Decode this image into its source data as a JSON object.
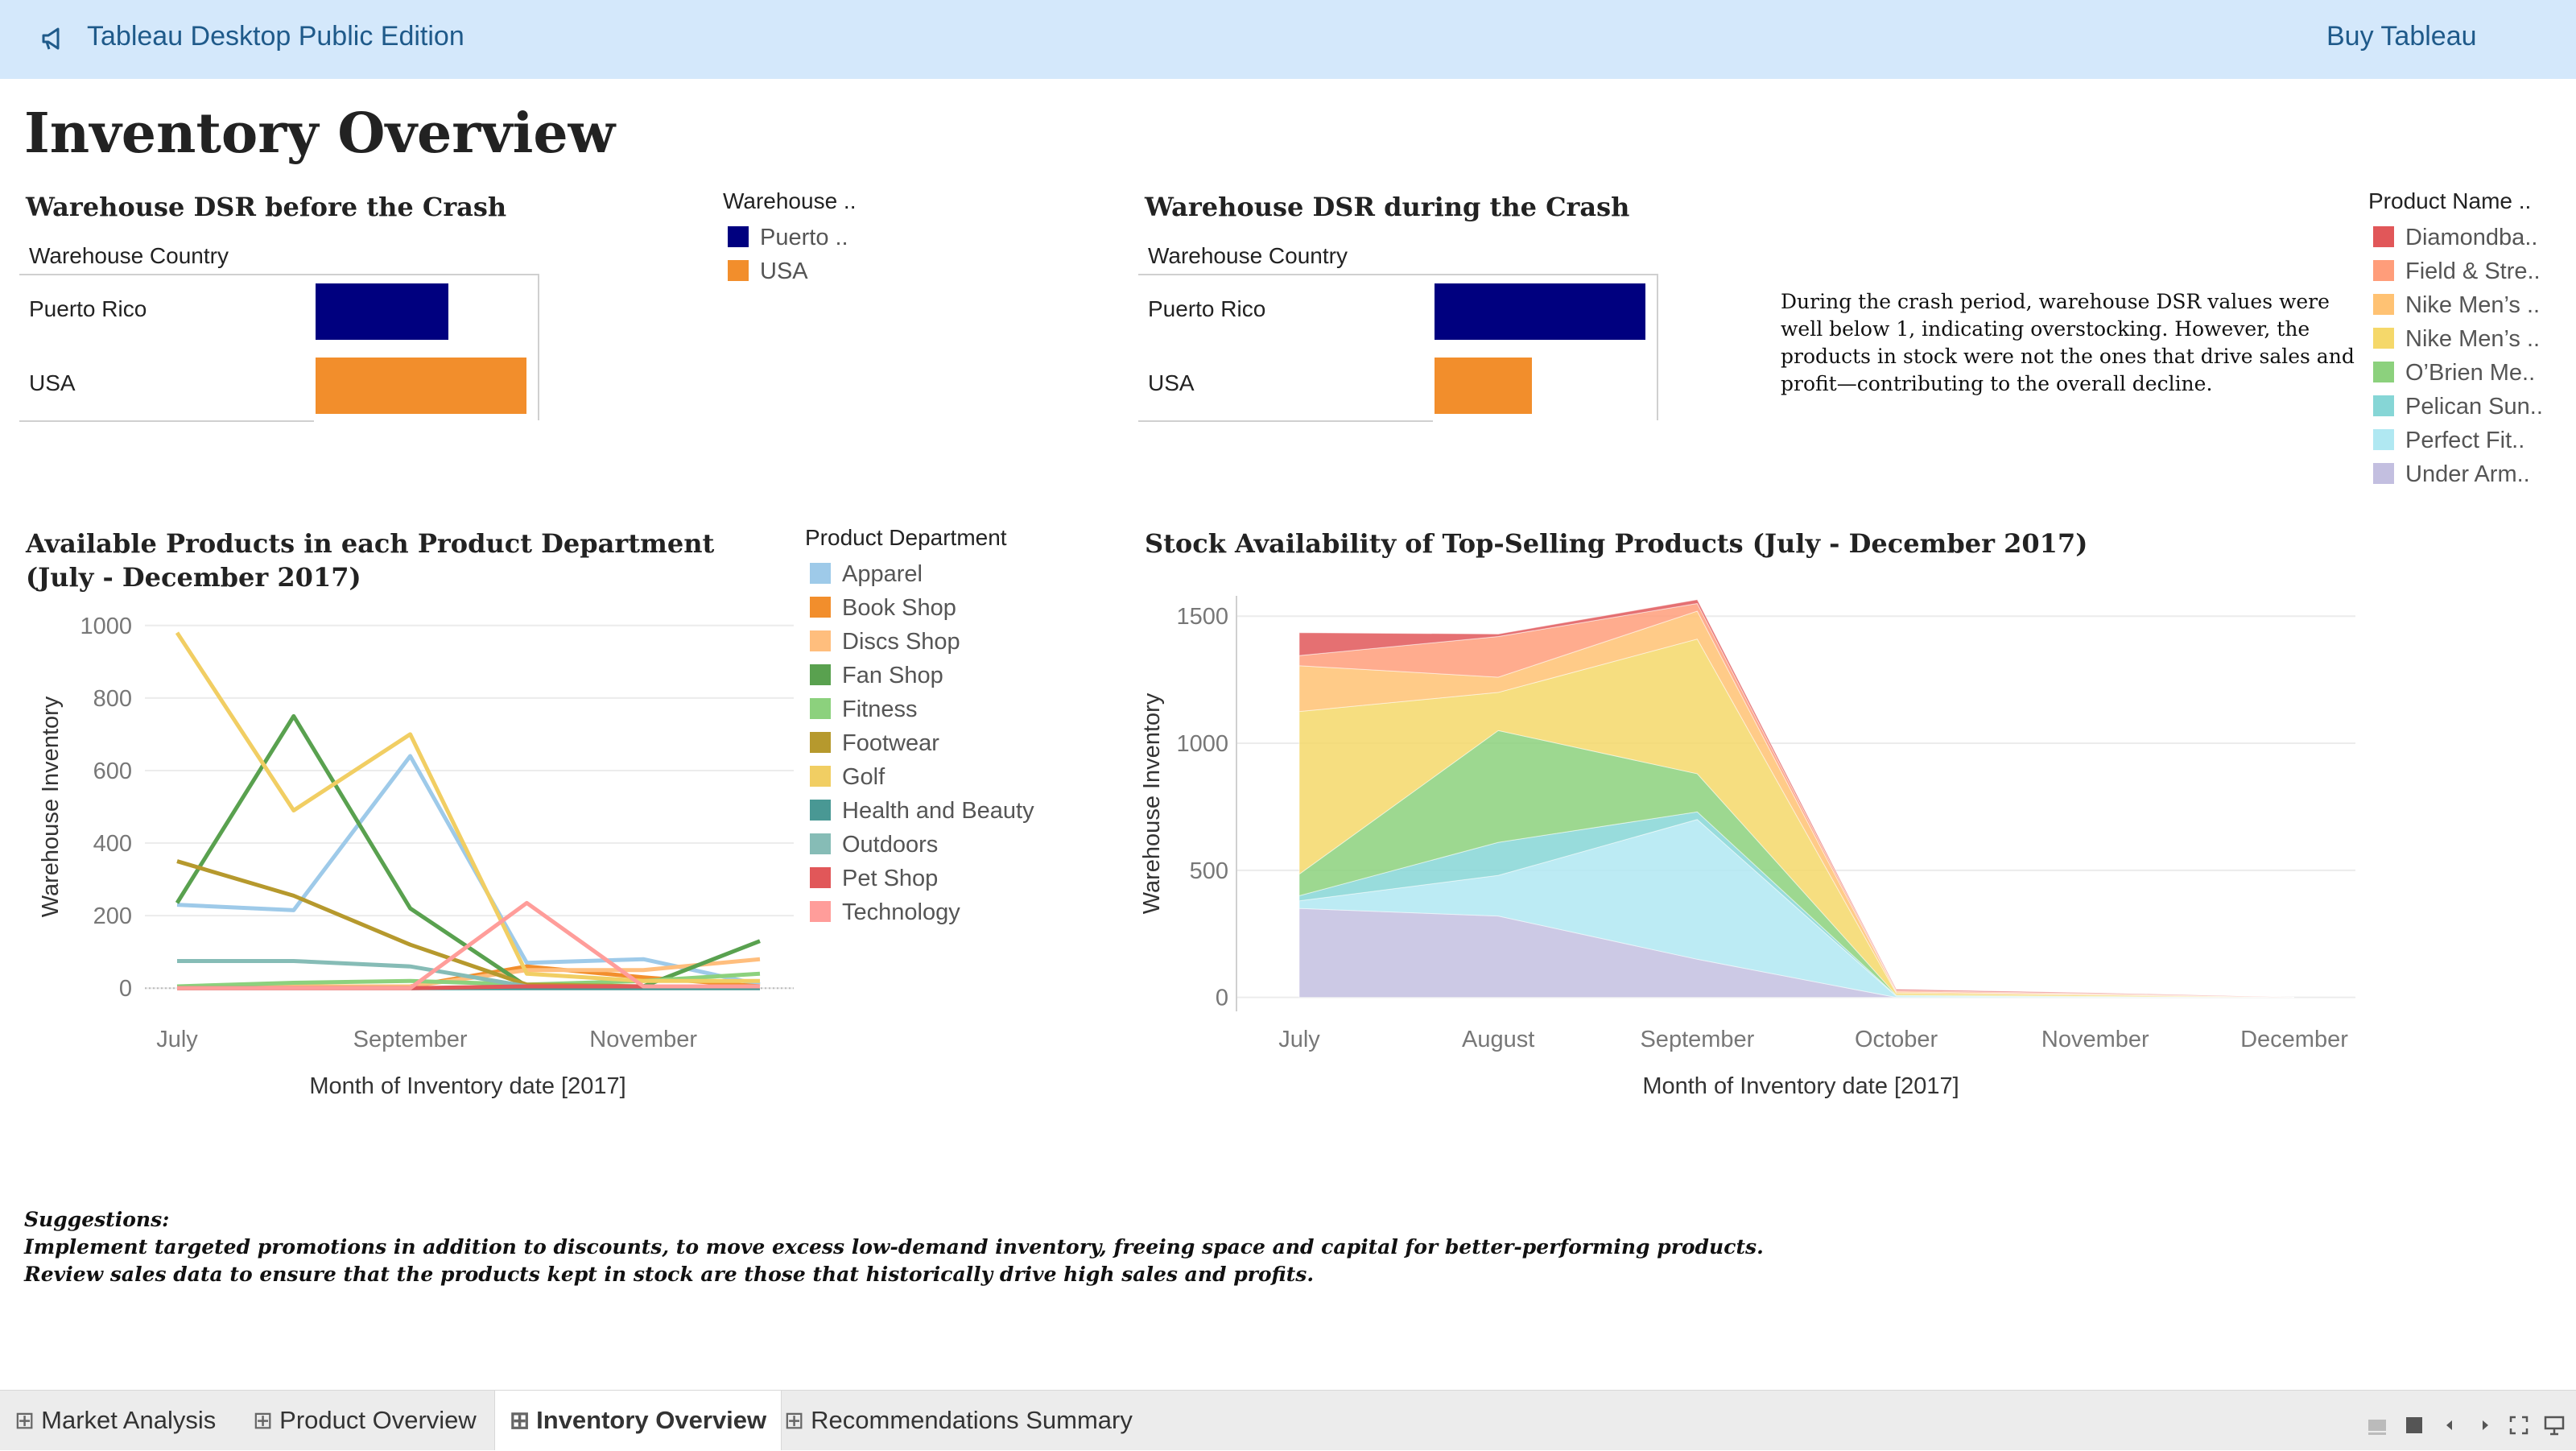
{
  "header": {
    "app_title": "Tableau Desktop Public Edition",
    "buy_label": "Buy Tableau"
  },
  "dashboard_title": "Inventory Overview",
  "dsr_before": {
    "title": "Warehouse DSR before the Crash",
    "column_header": "Warehouse Country",
    "rows": [
      {
        "label": "Puerto Rico",
        "value": 0.63,
        "color": "#00007f"
      },
      {
        "label": "USA",
        "value": 1.0,
        "color": "#f28e2c"
      }
    ],
    "legend": {
      "title": "Warehouse ..",
      "items": [
        {
          "label": "Puerto ..",
          "color": "#00007f"
        },
        {
          "label": "USA",
          "color": "#f28e2c"
        }
      ]
    }
  },
  "dsr_during": {
    "title": "Warehouse DSR during the Crash",
    "column_header": "Warehouse Country",
    "rows": [
      {
        "label": "Puerto Rico",
        "value": 1.0,
        "color": "#00007f"
      },
      {
        "label": "USA",
        "value": 0.46,
        "color": "#f28e2c"
      }
    ]
  },
  "crash_note": "During the crash period, warehouse DSR values were well below 1, indicating overstocking. However, the products in stock were not the ones that drive sales and profit—contributing to the overall decline.",
  "product_legend": {
    "title": "Product Name ..",
    "items": [
      {
        "label": "Diamondba..",
        "color": "#e15759"
      },
      {
        "label": "Field & Stre..",
        "color": "#ff9d7a"
      },
      {
        "label": "Nike Men’s ..",
        "color": "#ffc273"
      },
      {
        "label": "Nike Men’s ..",
        "color": "#f5d86a"
      },
      {
        "label": "O’Brien Me..",
        "color": "#8cd17d"
      },
      {
        "label": "Pelican Sun..",
        "color": "#86d6d6"
      },
      {
        "label": "Perfect Fit..",
        "color": "#b0e8f2"
      },
      {
        "label": "Under Arm..",
        "color": "#c3bfe0"
      }
    ]
  },
  "dept_legend": {
    "title": "Product Department",
    "items": [
      {
        "label": "Apparel",
        "color": "#9ecae9"
      },
      {
        "label": "Book Shop",
        "color": "#f28e2c"
      },
      {
        "label": "Discs Shop",
        "color": "#ffbe7d"
      },
      {
        "label": "Fan Shop",
        "color": "#59a14f"
      },
      {
        "label": "Fitness",
        "color": "#8cd17d"
      },
      {
        "label": "Footwear",
        "color": "#b6992d"
      },
      {
        "label": "Golf",
        "color": "#f1ce63"
      },
      {
        "label": "Health and Beauty",
        "color": "#499894"
      },
      {
        "label": "Outdoors",
        "color": "#86bcb6"
      },
      {
        "label": "Pet Shop",
        "color": "#e15759"
      },
      {
        "label": "Technology",
        "color": "#ff9d9a"
      }
    ]
  },
  "chart_data": [
    {
      "type": "line",
      "title": "Available Products in each Product Department (July - December 2017)",
      "xlabel": "Month of Inventory date [2017]",
      "ylabel": "Warehouse Inventory",
      "x": [
        "Jul",
        "Aug",
        "Sep",
        "Oct",
        "Nov",
        "Dec"
      ],
      "xticks": [
        "July",
        "September",
        "November"
      ],
      "yticks": [
        "0",
        "200",
        "400",
        "600",
        "800",
        "1000"
      ],
      "ylim": [
        -15,
        1015
      ],
      "grid": true,
      "series": [
        {
          "name": "Apparel",
          "color": "#9ecae9",
          "values": [
            230,
            215,
            640,
            70,
            80,
            10
          ]
        },
        {
          "name": "Book Shop",
          "color": "#f28e2c",
          "values": [
            0,
            2,
            5,
            60,
            30,
            5
          ]
        },
        {
          "name": "Discs Shop",
          "color": "#ffbe7d",
          "values": [
            5,
            5,
            5,
            50,
            50,
            80
          ]
        },
        {
          "name": "Fan Shop",
          "color": "#59a14f",
          "values": [
            235,
            750,
            220,
            5,
            5,
            130
          ]
        },
        {
          "name": "Fitness",
          "color": "#8cd17d",
          "values": [
            5,
            15,
            20,
            10,
            20,
            40
          ]
        },
        {
          "name": "Footwear",
          "color": "#b6992d",
          "values": [
            350,
            255,
            120,
            10,
            5,
            5
          ]
        },
        {
          "name": "Golf",
          "color": "#f1ce63",
          "values": [
            980,
            490,
            700,
            40,
            20,
            20
          ]
        },
        {
          "name": "Health and Beauty",
          "color": "#499894",
          "values": [
            0,
            0,
            0,
            0,
            0,
            0
          ]
        },
        {
          "name": "Outdoors",
          "color": "#86bcb6",
          "values": [
            75,
            75,
            60,
            5,
            5,
            5
          ]
        },
        {
          "name": "Pet Shop",
          "color": "#e15759",
          "values": [
            0,
            0,
            0,
            5,
            5,
            5
          ]
        },
        {
          "name": "Technology",
          "color": "#ff9d9a",
          "values": [
            0,
            0,
            0,
            235,
            5,
            5
          ]
        }
      ]
    },
    {
      "type": "area",
      "stacked": true,
      "title": "Stock Availability of Top-Selling Products (July - December 2017)",
      "xlabel": "Month of Inventory date [2017]",
      "ylabel": "Warehouse Inventory",
      "categories": [
        "July",
        "August",
        "September",
        "October",
        "November",
        "December"
      ],
      "yticks": [
        "0",
        "500",
        "1000",
        "1500"
      ],
      "ylim": [
        -55,
        1580
      ],
      "grid": true,
      "series": [
        {
          "name": "Under Arm..",
          "color": "#c3bfe0",
          "values": [
            350,
            320,
            150,
            0,
            0,
            0
          ]
        },
        {
          "name": "Perfect Fit..",
          "color": "#b0e8f2",
          "values": [
            30,
            160,
            550,
            5,
            2,
            0
          ]
        },
        {
          "name": "Pelican Sun..",
          "color": "#86d6d6",
          "values": [
            20,
            130,
            30,
            2,
            1,
            0
          ]
        },
        {
          "name": "O’Brien Me..",
          "color": "#8cd17d",
          "values": [
            85,
            440,
            150,
            2,
            1,
            0
          ]
        },
        {
          "name": "Nike Men’s ..",
          "color": "#f5d86a",
          "values": [
            640,
            150,
            530,
            8,
            5,
            0
          ]
        },
        {
          "name": "Nike Men’s ..",
          "color": "#ffc273",
          "values": [
            180,
            60,
            110,
            5,
            3,
            0
          ]
        },
        {
          "name": "Field & Stre..",
          "color": "#ff9d7a",
          "values": [
            40,
            160,
            30,
            5,
            3,
            0
          ]
        },
        {
          "name": "Diamondba..",
          "color": "#e15759",
          "values": [
            90,
            10,
            15,
            5,
            3,
            0
          ]
        }
      ]
    }
  ],
  "suggestions": {
    "heading": "Suggestions:",
    "lines": [
      "Implement targeted promotions in addition to discounts, to move excess low-demand inventory, freeing space and capital for better-performing products.",
      "Review sales data to ensure that the products kept in stock are those that historically drive high sales and profits."
    ]
  },
  "tabs": [
    {
      "label": "Market Analysis",
      "active": false
    },
    {
      "label": "Product Overview",
      "active": false
    },
    {
      "label": "Inventory Overview",
      "active": true
    },
    {
      "label": "Recommendations Summary",
      "active": false
    }
  ]
}
